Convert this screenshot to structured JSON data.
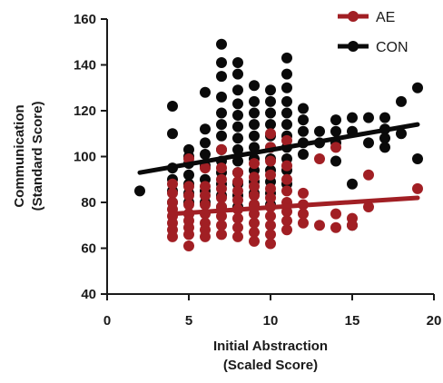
{
  "chart_data": {
    "type": "scatter",
    "xlabel_lines": [
      "Initial Abstraction",
      "(Scaled Score)"
    ],
    "ylabel_lines": [
      "Communication",
      "(Standard Score)"
    ],
    "xlim": [
      0,
      20
    ],
    "ylim": [
      40,
      160
    ],
    "xticks": [
      "0",
      "5",
      "10",
      "15",
      "20"
    ],
    "yticks": [
      "40",
      "60",
      "80",
      "100",
      "120",
      "140",
      "160"
    ],
    "grid": false,
    "legend_position": "top-right",
    "series": [
      {
        "name": "CON",
        "color": "#0a0a0a",
        "trend": [
          [
            2,
            93
          ],
          [
            19,
            114
          ]
        ],
        "points": [
          [
            2,
            85
          ],
          [
            4,
            122
          ],
          [
            4,
            110
          ],
          [
            4,
            95
          ],
          [
            4,
            90
          ],
          [
            4,
            85
          ],
          [
            4,
            80
          ],
          [
            5,
            103
          ],
          [
            5,
            100
          ],
          [
            5,
            97
          ],
          [
            5,
            92
          ],
          [
            5,
            88
          ],
          [
            5,
            84
          ],
          [
            5,
            80
          ],
          [
            5,
            75
          ],
          [
            6,
            128
          ],
          [
            6,
            112
          ],
          [
            6,
            106
          ],
          [
            6,
            101
          ],
          [
            6,
            96
          ],
          [
            6,
            90
          ],
          [
            6,
            85
          ],
          [
            6,
            80
          ],
          [
            7,
            149
          ],
          [
            7,
            141
          ],
          [
            7,
            135
          ],
          [
            7,
            126
          ],
          [
            7,
            119
          ],
          [
            7,
            114
          ],
          [
            7,
            109
          ],
          [
            7,
            103
          ],
          [
            7,
            98
          ],
          [
            7,
            93
          ],
          [
            7,
            88
          ],
          [
            7,
            83
          ],
          [
            7,
            78
          ],
          [
            8,
            141
          ],
          [
            8,
            136
          ],
          [
            8,
            129
          ],
          [
            8,
            123
          ],
          [
            8,
            118
          ],
          [
            8,
            113
          ],
          [
            8,
            108
          ],
          [
            8,
            103
          ],
          [
            8,
            98
          ],
          [
            8,
            93
          ],
          [
            8,
            88
          ],
          [
            8,
            83
          ],
          [
            8,
            78
          ],
          [
            9,
            131
          ],
          [
            9,
            124
          ],
          [
            9,
            119
          ],
          [
            9,
            114
          ],
          [
            9,
            109
          ],
          [
            9,
            104
          ],
          [
            9,
            99
          ],
          [
            9,
            94
          ],
          [
            9,
            89
          ],
          [
            9,
            84
          ],
          [
            9,
            79
          ],
          [
            10,
            129
          ],
          [
            10,
            124
          ],
          [
            10,
            119
          ],
          [
            10,
            114
          ],
          [
            10,
            109
          ],
          [
            10,
            104
          ],
          [
            10,
            99
          ],
          [
            10,
            94
          ],
          [
            10,
            89
          ],
          [
            10,
            84
          ],
          [
            10,
            79
          ],
          [
            11,
            143
          ],
          [
            11,
            136
          ],
          [
            11,
            130
          ],
          [
            11,
            124
          ],
          [
            11,
            119
          ],
          [
            11,
            114
          ],
          [
            11,
            109
          ],
          [
            11,
            104
          ],
          [
            11,
            99
          ],
          [
            11,
            94
          ],
          [
            11,
            88
          ],
          [
            12,
            121
          ],
          [
            12,
            116
          ],
          [
            12,
            111
          ],
          [
            12,
            106
          ],
          [
            12,
            101
          ],
          [
            13,
            111
          ],
          [
            13,
            106
          ],
          [
            14,
            116
          ],
          [
            14,
            111
          ],
          [
            14,
            106
          ],
          [
            14,
            98
          ],
          [
            15,
            117
          ],
          [
            15,
            111
          ],
          [
            15,
            88
          ],
          [
            15,
            70
          ],
          [
            16,
            117
          ],
          [
            16,
            106
          ],
          [
            17,
            117
          ],
          [
            17,
            112
          ],
          [
            17,
            108
          ],
          [
            17,
            104
          ],
          [
            18,
            124
          ],
          [
            18,
            110
          ],
          [
            19,
            130
          ],
          [
            19,
            99
          ]
        ]
      },
      {
        "name": "AE",
        "color": "#a11f24",
        "trend": [
          [
            4,
            75
          ],
          [
            19,
            82
          ]
        ],
        "points": [
          [
            4,
            88
          ],
          [
            4,
            84
          ],
          [
            4,
            80
          ],
          [
            4,
            77
          ],
          [
            4,
            74
          ],
          [
            4,
            71
          ],
          [
            4,
            68
          ],
          [
            4,
            65
          ],
          [
            5,
            99
          ],
          [
            5,
            87
          ],
          [
            5,
            83
          ],
          [
            5,
            79
          ],
          [
            5,
            75
          ],
          [
            5,
            72
          ],
          [
            5,
            69
          ],
          [
            5,
            66
          ],
          [
            5,
            61
          ],
          [
            6,
            95
          ],
          [
            6,
            87
          ],
          [
            6,
            83
          ],
          [
            6,
            79
          ],
          [
            6,
            75
          ],
          [
            6,
            71
          ],
          [
            6,
            68
          ],
          [
            6,
            65
          ],
          [
            7,
            103
          ],
          [
            7,
            95
          ],
          [
            7,
            90
          ],
          [
            7,
            86
          ],
          [
            7,
            82
          ],
          [
            7,
            78
          ],
          [
            7,
            74
          ],
          [
            7,
            70
          ],
          [
            7,
            66
          ],
          [
            8,
            93
          ],
          [
            8,
            89
          ],
          [
            8,
            85
          ],
          [
            8,
            81
          ],
          [
            8,
            77
          ],
          [
            8,
            73
          ],
          [
            8,
            69
          ],
          [
            8,
            65
          ],
          [
            9,
            97
          ],
          [
            9,
            91
          ],
          [
            9,
            87
          ],
          [
            9,
            83
          ],
          [
            9,
            79
          ],
          [
            9,
            75
          ],
          [
            9,
            71
          ],
          [
            9,
            67
          ],
          [
            9,
            63
          ],
          [
            10,
            110
          ],
          [
            10,
            104
          ],
          [
            10,
            98
          ],
          [
            10,
            92
          ],
          [
            10,
            86
          ],
          [
            10,
            82
          ],
          [
            10,
            78
          ],
          [
            10,
            74
          ],
          [
            10,
            70
          ],
          [
            10,
            66
          ],
          [
            10,
            62
          ],
          [
            11,
            107
          ],
          [
            11,
            96
          ],
          [
            11,
            90
          ],
          [
            11,
            85
          ],
          [
            11,
            80
          ],
          [
            11,
            76
          ],
          [
            11,
            72
          ],
          [
            11,
            68
          ],
          [
            12,
            84
          ],
          [
            12,
            79
          ],
          [
            12,
            75
          ],
          [
            12,
            71
          ],
          [
            13,
            99
          ],
          [
            13,
            70
          ],
          [
            14,
            104
          ],
          [
            14,
            75
          ],
          [
            14,
            69
          ],
          [
            15,
            73
          ],
          [
            15,
            70
          ],
          [
            16,
            92
          ],
          [
            16,
            78
          ],
          [
            19,
            86
          ]
        ]
      }
    ]
  }
}
